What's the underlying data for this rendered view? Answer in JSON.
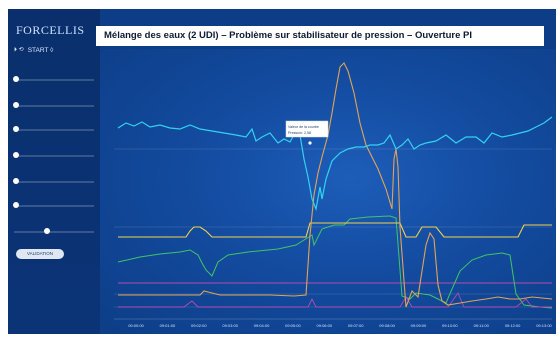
{
  "app": {
    "logo": "FORCELLIS"
  },
  "toolbar": {
    "start_symbols": "⏵ ⟲",
    "start_label": "START ◊"
  },
  "chart": {
    "title": "Mélange des eaux (2 UDI) – Problème sur stabilisateur de pression – Ouverture PI",
    "tooltip": [
      "Valeur de la courbe",
      "Pression: 2,58"
    ],
    "series_colors": {
      "pressure": "#33d2f0",
      "orange": "#e2a356",
      "yellow": "#f0d44a",
      "green": "#41c466",
      "magenta": "#b64ab0"
    },
    "x_labels": [
      "09:00:00",
      "09:01:00",
      "09:02:00",
      "09:03:00",
      "09:04:00",
      "09:05:00",
      "09:06:00",
      "09:07:00",
      "09:08:00",
      "09:09:00",
      "09:10:00",
      "09:11:00",
      "09:12:00",
      "09:13:00"
    ]
  },
  "buttons": {
    "validate": "VALIDATION"
  }
}
